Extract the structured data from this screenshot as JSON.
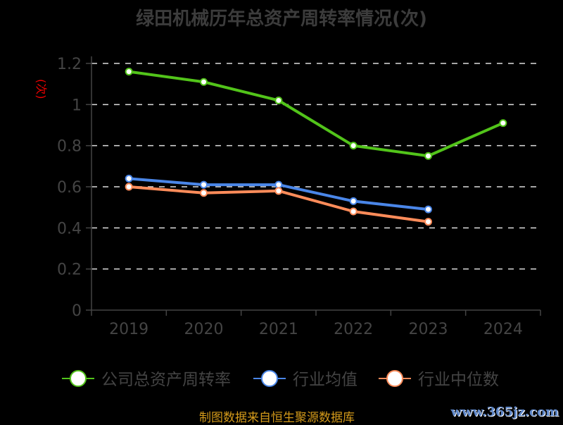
{
  "chart_data": {
    "type": "line",
    "title": "绿田机械历年总资产周转率情况(次)",
    "ylabel": "(次)",
    "categories": [
      "2019",
      "2020",
      "2021",
      "2022",
      "2023",
      "2024"
    ],
    "ylim": [
      0,
      1.2
    ],
    "yticks": [
      "0",
      "0.2",
      "0.4",
      "0.6",
      "0.8",
      "1",
      "1.2"
    ],
    "grid": true,
    "legend_position": "bottom",
    "series": [
      {
        "name": "公司总资产周转率",
        "color": "#52c41a",
        "values": [
          1.16,
          1.11,
          1.02,
          0.8,
          0.75,
          0.91
        ]
      },
      {
        "name": "行业均值",
        "color": "#4a86e8",
        "values": [
          0.64,
          0.61,
          0.61,
          0.53,
          0.49,
          null
        ]
      },
      {
        "name": "行业中位数",
        "color": "#ff8c5a",
        "values": [
          0.6,
          0.57,
          0.58,
          0.48,
          0.43,
          null
        ]
      }
    ]
  },
  "footer": "制图数据来自恒生聚源数据库",
  "watermark": "www.365jz.com"
}
